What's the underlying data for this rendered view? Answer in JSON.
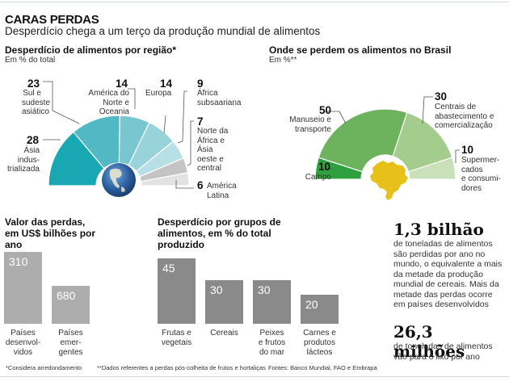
{
  "header": {
    "title": "CARAS PERDAS",
    "subtitle": "Desperdício chega a um terço da produção mundial de alimentos"
  },
  "chart_data": [
    {
      "type": "pie",
      "shape": "half-donut",
      "title": "Desperdício de alimentos por região*",
      "subtitle": "Em % do total",
      "center_icon": "globe-icon",
      "slices": [
        {
          "label": "Ásia industrializada",
          "label_lines": [
            "Ásia",
            "indus-",
            "trializada"
          ],
          "value": 28,
          "color": "#1aa7b4"
        },
        {
          "label": "Sul e sudeste asiático",
          "label_lines": [
            "Sul e",
            "sudeste",
            "asiático"
          ],
          "value": 23,
          "color": "#52b9c4"
        },
        {
          "label": "América do Norte e Oceania",
          "label_lines": [
            "América do",
            "Norte e Oceania"
          ],
          "value": 14,
          "color": "#78c6cf"
        },
        {
          "label": "Europa",
          "label_lines": [
            "Europa"
          ],
          "value": 14,
          "color": "#99d3da"
        },
        {
          "label": "África subsaariana",
          "label_lines": [
            "África",
            "subsaariana"
          ],
          "value": 9,
          "color": "#b6e0e5"
        },
        {
          "label": "Norte da África e Ásia oeste e central",
          "label_lines": [
            "Norte da",
            "África e",
            "Ásia",
            "oeste e",
            "central"
          ],
          "value": 7,
          "color": "#c4c4c4"
        },
        {
          "label": "América Latina",
          "label_lines": [
            "América",
            "Latina"
          ],
          "value": 6,
          "color": "#e2e2e2"
        }
      ]
    },
    {
      "type": "pie",
      "shape": "half-donut",
      "title": "Onde se perdem os alimentos no Brasil",
      "subtitle": "Em %**",
      "center_icon": "brazil-map-icon",
      "slices": [
        {
          "label": "Campo",
          "label_lines": [
            "Campo"
          ],
          "value": 10,
          "color": "#2ea13e"
        },
        {
          "label": "Manuseio e transporte",
          "label_lines": [
            "Manuseio e",
            "transporte"
          ],
          "value": 50,
          "color": "#6db35e"
        },
        {
          "label": "Centrais de abastecimento e comercialização",
          "label_lines": [
            "Centrais de",
            "abastecimento e",
            "comercialização"
          ],
          "value": 30,
          "color": "#a3cc8d"
        },
        {
          "label": "Supermercados e consumidores",
          "label_lines": [
            "Supermer-",
            "cados",
            "e consumi-",
            "dores"
          ],
          "value": 10,
          "color": "#c9e0b9"
        }
      ]
    },
    {
      "type": "bar",
      "title": "Valor das perdas, em US$ bilhões por ano",
      "categories": [
        "Países desenvolvidos",
        "Países emergentes"
      ],
      "category_lines": [
        [
          "Países",
          "desenvol-",
          "vidos"
        ],
        [
          "Países",
          "emer-",
          "gentes"
        ]
      ],
      "values": [
        310,
        680
      ],
      "value_labels": [
        "310",
        "680"
      ],
      "color": "#adadad",
      "note": "bar heights as drawn: first bar taller than second"
    },
    {
      "type": "bar",
      "title": "Desperdício por grupos de alimentos, em % do total produzido",
      "categories": [
        "Frutas e vegetais",
        "Cereais",
        "Peixes e frutos do mar",
        "Carnes e produtos lácteos"
      ],
      "category_lines": [
        [
          "Frutas e",
          "vegetais"
        ],
        [
          "Cereais"
        ],
        [
          "Peixes",
          "e frutos",
          "do mar"
        ],
        [
          "Carnes e",
          "produtos",
          "lácteos"
        ]
      ],
      "values": [
        45,
        30,
        30,
        20
      ],
      "value_labels": [
        "45",
        "30",
        "30",
        "20"
      ],
      "color": "#8a8a8a",
      "ylim": [
        0,
        45
      ]
    }
  ],
  "facts": [
    {
      "headline": "1,3 bilhão",
      "body_lines": [
        "de toneladas de alimentos",
        "são perdidas por ano no",
        "mundo, o equivalente a mais",
        "da metade da produção",
        "mundial de cereais. Mais da",
        "metade das perdas ocorre",
        "em países desenvolvidos"
      ]
    },
    {
      "headline": "26,3 milhões",
      "body_lines": [
        "de toneladas de alimentos",
        "vão para o lixo por ano"
      ]
    }
  ],
  "footer": {
    "note1": "*Considera arredondamento",
    "note2": "**Dados referentes a perdas pós-colheita de frutos e hortaliças",
    "sources": "Fontes: Banco Mundial, FAO e Embrapa"
  }
}
